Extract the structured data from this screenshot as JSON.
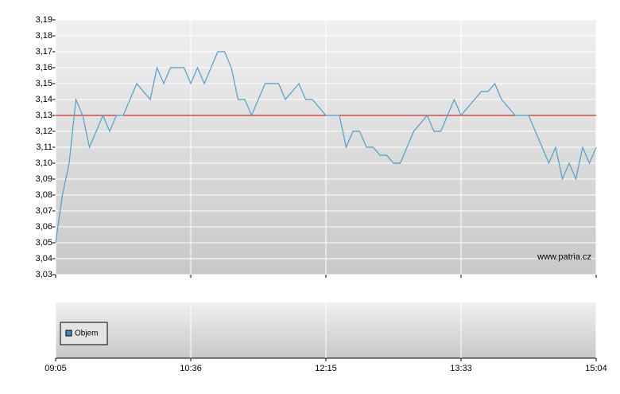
{
  "chart_data": {
    "type": "line",
    "categories": [
      "09:05",
      null,
      null,
      null,
      null,
      null,
      null,
      null,
      null,
      null,
      null,
      null,
      null,
      null,
      null,
      null,
      null,
      null,
      null,
      null,
      "10:36",
      null,
      null,
      null,
      null,
      null,
      null,
      null,
      null,
      null,
      null,
      null,
      null,
      null,
      null,
      null,
      null,
      null,
      null,
      null,
      "12:15",
      null,
      null,
      null,
      null,
      null,
      null,
      null,
      null,
      null,
      null,
      null,
      null,
      null,
      null,
      null,
      null,
      null,
      null,
      null,
      "13:33",
      null,
      null,
      null,
      null,
      null,
      null,
      null,
      null,
      null,
      null,
      null,
      null,
      null,
      null,
      null,
      null,
      null,
      null,
      null,
      "15:04"
    ],
    "series": [
      {
        "color": "#4aa3c8",
        "values": [
          3.05,
          3.08,
          3.1,
          3.14,
          3.13,
          3.11,
          3.12,
          3.13,
          3.12,
          3.13,
          3.13,
          3.14,
          3.15,
          3.145,
          3.14,
          3.16,
          3.15,
          3.16,
          3.16,
          3.16,
          3.15,
          3.16,
          3.15,
          3.16,
          3.17,
          3.17,
          3.16,
          3.14,
          3.14,
          3.13,
          3.14,
          3.15,
          3.15,
          3.15,
          3.14,
          3.145,
          3.15,
          3.14,
          3.14,
          3.135,
          3.13,
          3.13,
          3.13,
          3.11,
          3.12,
          3.12,
          3.11,
          3.11,
          3.105,
          3.105,
          3.1,
          3.1,
          3.11,
          3.12,
          3.125,
          3.13,
          3.12,
          3.12,
          3.13,
          3.14,
          3.13,
          3.135,
          3.14,
          3.145,
          3.145,
          3.15,
          3.14,
          3.135,
          3.13,
          3.13,
          3.13,
          3.12,
          3.11,
          3.1,
          3.11,
          3.09,
          3.1,
          3.09,
          3.11,
          3.1,
          3.11
        ]
      }
    ],
    "reference_line": {
      "value": 3.13,
      "color": "#cc0000"
    },
    "ylim": [
      3.03,
      3.19
    ],
    "yticks": [
      {
        "value": 3.03,
        "label": "3,03"
      },
      {
        "value": 3.04,
        "label": "3,04"
      },
      {
        "value": 3.05,
        "label": "3,05"
      },
      {
        "value": 3.06,
        "label": "3,06"
      },
      {
        "value": 3.07,
        "label": "3,07"
      },
      {
        "value": 3.08,
        "label": "3,08"
      },
      {
        "value": 3.09,
        "label": "3,09"
      },
      {
        "value": 3.1,
        "label": "3,10"
      },
      {
        "value": 3.11,
        "label": "3,11"
      },
      {
        "value": 3.12,
        "label": "3,12"
      },
      {
        "value": 3.13,
        "label": "3,13"
      },
      {
        "value": 3.14,
        "label": "3,14"
      },
      {
        "value": 3.15,
        "label": "3,15"
      },
      {
        "value": 3.16,
        "label": "3,16"
      },
      {
        "value": 3.17,
        "label": "3,17"
      },
      {
        "value": 3.18,
        "label": "3,18"
      },
      {
        "value": 3.19,
        "label": "3,19"
      }
    ],
    "grid": true,
    "watermark": "www.patria.cz",
    "volume_legend": {
      "label": "Objem",
      "color": "#3c8fc7"
    }
  }
}
